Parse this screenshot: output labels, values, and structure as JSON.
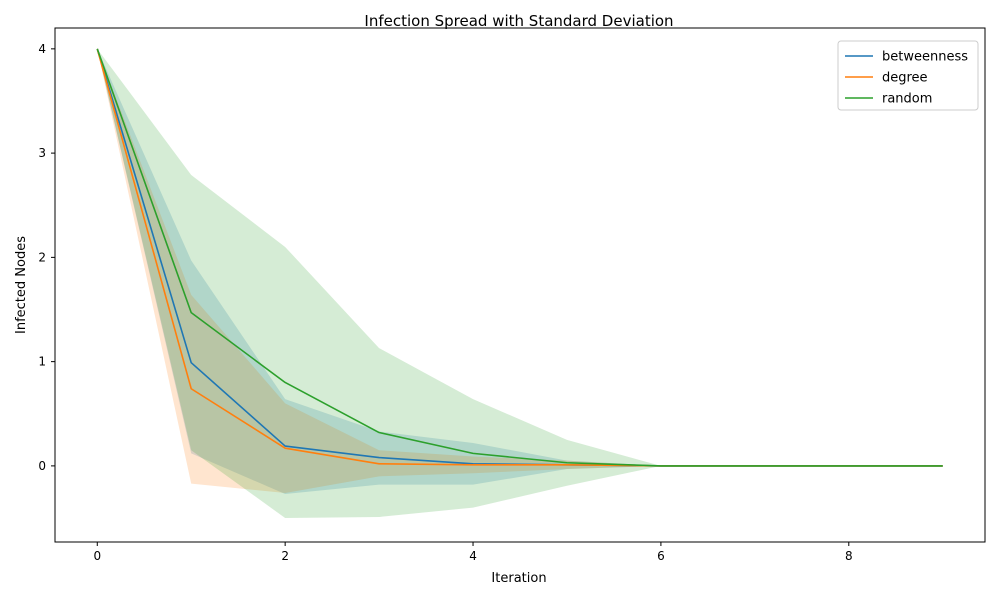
{
  "chart_data": {
    "type": "line",
    "title": "Infection Spread with Standard Deviation",
    "xlabel": "Iteration",
    "ylabel": "Infected Nodes",
    "xlim": [
      -0.45,
      9.45
    ],
    "ylim": [
      -0.73,
      4.2
    ],
    "xticks": [
      0,
      2,
      4,
      6,
      8
    ],
    "yticks": [
      0,
      1,
      2,
      3,
      4
    ],
    "grid": false,
    "legend_position": "top-right",
    "x": [
      0,
      1,
      2,
      3,
      4,
      5,
      6,
      7,
      8,
      9
    ],
    "series": [
      {
        "name": "betweenness",
        "color": "#1f77b4",
        "values": [
          4,
          0.99,
          0.19,
          0.08,
          0.02,
          0.01,
          0,
          0,
          0,
          0
        ],
        "std_upper": [
          4,
          1.97,
          0.64,
          0.33,
          0.22,
          0.05,
          0,
          0,
          0,
          0
        ],
        "std_lower": [
          4,
          0.12,
          -0.27,
          -0.18,
          -0.18,
          -0.03,
          0,
          0,
          0,
          0
        ]
      },
      {
        "name": "degree",
        "color": "#ff7f0e",
        "values": [
          4,
          0.74,
          0.17,
          0.02,
          0.01,
          0.01,
          0,
          0,
          0,
          0
        ],
        "std_upper": [
          4,
          1.64,
          0.6,
          0.15,
          0.09,
          0.05,
          0,
          0,
          0,
          0
        ],
        "std_lower": [
          4,
          -0.17,
          -0.26,
          -0.1,
          -0.07,
          -0.03,
          0,
          0,
          0,
          0
        ]
      },
      {
        "name": "random",
        "color": "#2ca02c",
        "values": [
          4,
          1.47,
          0.8,
          0.32,
          0.12,
          0.03,
          0,
          0,
          0,
          0
        ],
        "std_upper": [
          4,
          2.79,
          2.1,
          1.13,
          0.64,
          0.25,
          0,
          0,
          0,
          0
        ],
        "std_lower": [
          4,
          0.15,
          -0.5,
          -0.49,
          -0.4,
          -0.19,
          0,
          0,
          0,
          0
        ]
      }
    ]
  }
}
